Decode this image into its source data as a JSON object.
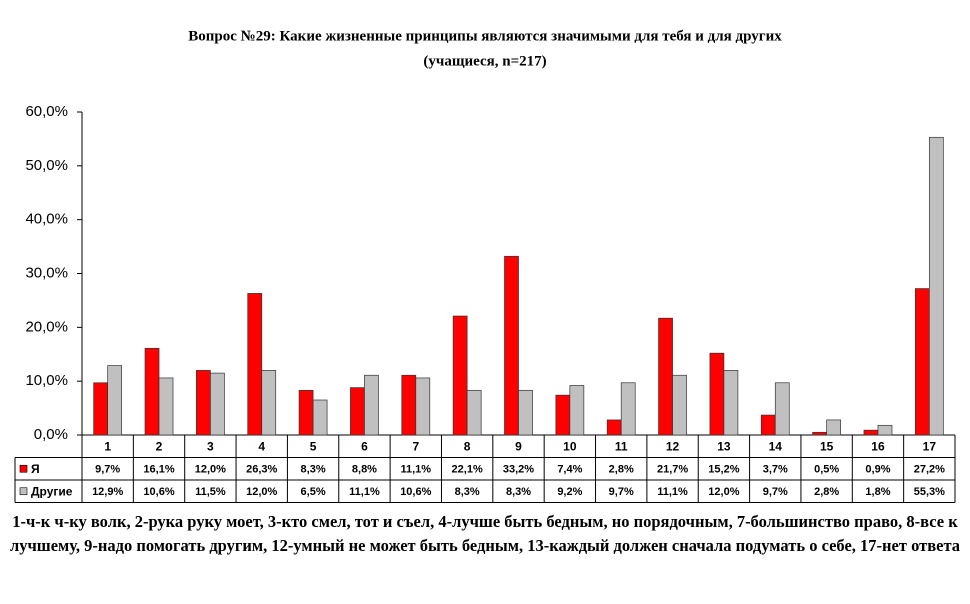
{
  "chart_data": {
    "type": "bar",
    "title": "Вопрос №29: Какие жизненные принципы являются значимыми для тебя и для других",
    "subtitle": "(учащиеся, n=217)",
    "categories": [
      "1",
      "2",
      "3",
      "4",
      "5",
      "6",
      "7",
      "8",
      "9",
      "10",
      "11",
      "12",
      "13",
      "14",
      "15",
      "16",
      "17"
    ],
    "series": [
      {
        "name": "Я",
        "color": "#ff0000",
        "values": [
          9.7,
          16.1,
          12.0,
          26.3,
          8.3,
          8.8,
          11.1,
          22.1,
          33.2,
          7.4,
          2.8,
          21.7,
          15.2,
          3.7,
          0.5,
          0.9,
          27.2
        ],
        "value_labels": [
          "9,7%",
          "16,1%",
          "12,0%",
          "26,3%",
          "8,3%",
          "8,8%",
          "11,1%",
          "22,1%",
          "33,2%",
          "7,4%",
          "2,8%",
          "21,7%",
          "15,2%",
          "3,7%",
          "0,5%",
          "0,9%",
          "27,2%"
        ]
      },
      {
        "name": "Другие",
        "color": "#c0c0c0",
        "values": [
          12.9,
          10.6,
          11.5,
          12.0,
          6.5,
          11.1,
          10.6,
          8.3,
          8.3,
          9.2,
          9.7,
          11.1,
          12.0,
          9.7,
          2.8,
          1.8,
          55.3
        ],
        "value_labels": [
          "12,9%",
          "10,6%",
          "11,5%",
          "12,0%",
          "6,5%",
          "11,1%",
          "10,6%",
          "8,3%",
          "8,3%",
          "9,2%",
          "9,7%",
          "11,1%",
          "12,0%",
          "9,7%",
          "2,8%",
          "1,8%",
          "55,3%"
        ]
      }
    ],
    "ylim": [
      0,
      60
    ],
    "yticks": [
      {
        "value": 0,
        "label": "0,0%"
      },
      {
        "value": 10,
        "label": "10,0%"
      },
      {
        "value": 20,
        "label": "20,0%"
      },
      {
        "value": 30,
        "label": "30,0%"
      },
      {
        "value": 40,
        "label": "40,0%"
      },
      {
        "value": 50,
        "label": "50,0%"
      },
      {
        "value": 60,
        "label": "60,0%"
      }
    ],
    "grid": false,
    "note": "1-ч-к ч-ку волк, 2-рука руку моет, 3-кто смел, тот и съел, 4-лучше быть бедным, но порядочным, 7-большинство право, 8-все к лучшему, 9-надо помогать другим, 12-умный не может быть бедным, 13-каждый должен сначала подумать о себе, 17-нет ответа"
  }
}
